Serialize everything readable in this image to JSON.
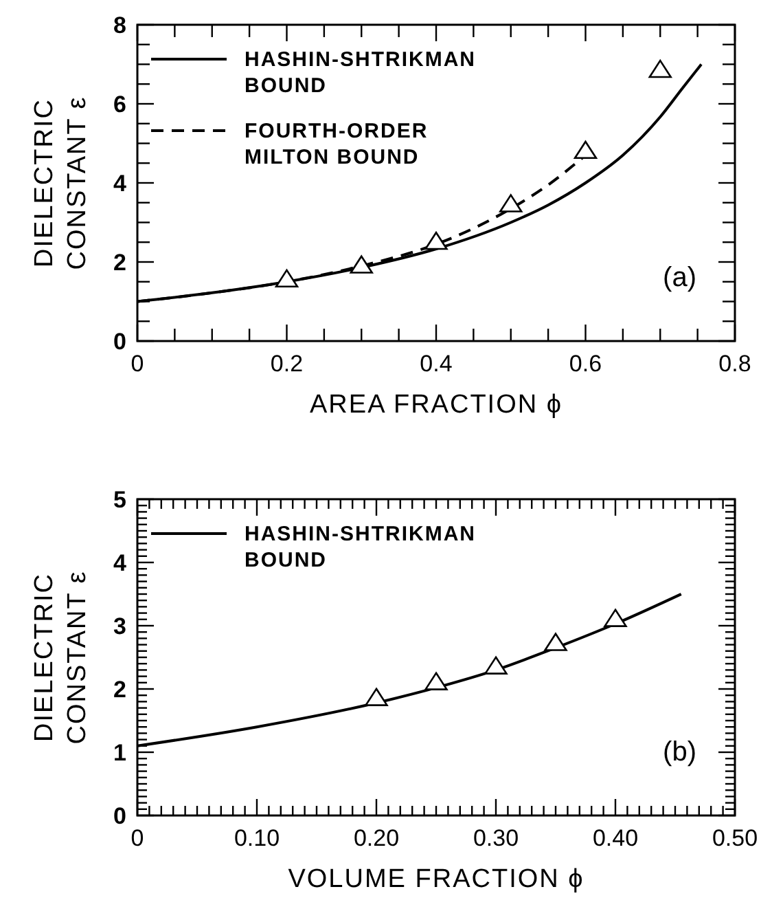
{
  "chart_data": [
    {
      "type": "line",
      "xlabel": "AREA FRACTION ϕ",
      "ylabel": "DIELECTRIC CONSTANT ε",
      "xlim": [
        0,
        0.8
      ],
      "ylim": [
        0,
        8
      ],
      "xticks": [
        0,
        {
          "value": 0.05,
          "label": null
        },
        {
          "value": 0.1,
          "label": null
        },
        {
          "value": 0.15,
          "label": null
        },
        0.2,
        {
          "value": 0.25,
          "label": null
        },
        {
          "value": 0.3,
          "label": null
        },
        {
          "value": 0.35,
          "label": null
        },
        0.4,
        {
          "value": 0.45,
          "label": null
        },
        {
          "value": 0.5,
          "label": null
        },
        {
          "value": 0.55,
          "label": null
        },
        0.6,
        {
          "value": 0.65,
          "label": null
        },
        {
          "value": 0.7,
          "label": null
        },
        {
          "value": 0.75,
          "label": null
        },
        0.8
      ],
      "yticks": [
        0,
        {
          "value": 0.5,
          "label": null
        },
        {
          "value": 1,
          "label": null
        },
        {
          "value": 1.5,
          "label": null
        },
        2,
        {
          "value": 2.5,
          "label": null
        },
        {
          "value": 3,
          "label": null
        },
        {
          "value": 3.5,
          "label": null
        },
        4,
        {
          "value": 4.5,
          "label": null
        },
        {
          "value": 5,
          "label": null
        },
        {
          "value": 5.5,
          "label": null
        },
        6,
        {
          "value": 6.5,
          "label": null
        },
        {
          "value": 7,
          "label": null
        },
        {
          "value": 7.5,
          "label": null
        },
        8
      ],
      "legend": "top left",
      "annotations": [
        "(a)"
      ],
      "series": [
        {
          "name": "HASHIN-SHTRIKMAN BOUND",
          "line_style": "solid",
          "color": "#000000",
          "x": [
            0,
            0.1,
            0.2,
            0.3,
            0.4,
            0.5,
            0.55,
            0.6,
            0.65,
            0.7,
            0.73,
            0.755
          ],
          "values": [
            1,
            1.22,
            1.5,
            1.86,
            2.33,
            3.0,
            3.44,
            4.0,
            4.7,
            5.67,
            6.4,
            7.0
          ]
        },
        {
          "name": "FOURTH-ORDER MILTON BOUND",
          "line_style": "dashed",
          "color": "#000000",
          "x": [
            0,
            0.1,
            0.2,
            0.3,
            0.4,
            0.45,
            0.5,
            0.55,
            0.6
          ],
          "values": [
            1,
            1.22,
            1.5,
            1.9,
            2.45,
            2.85,
            3.35,
            3.95,
            4.7
          ]
        },
        {
          "type": "scatter",
          "marker": "triangle",
          "color": "#000000",
          "x": [
            0.2,
            0.3,
            0.4,
            0.5,
            0.6,
            0.7
          ],
          "values": [
            1.55,
            1.9,
            2.5,
            3.45,
            4.8,
            6.85
          ]
        }
      ]
    },
    {
      "type": "line",
      "xlabel": "VOLUME FRACTION ϕ",
      "ylabel": "DIELECTRIC CONSTANT ε",
      "xlim": [
        0,
        0.5
      ],
      "ylim": [
        0,
        5
      ],
      "xticks": [
        0,
        {
          "value": 0.01,
          "label": null
        },
        {
          "value": 0.02,
          "label": null
        },
        {
          "value": 0.03,
          "label": null
        },
        {
          "value": 0.04,
          "label": null
        },
        {
          "value": 0.05,
          "label": null
        },
        {
          "value": 0.06,
          "label": null
        },
        {
          "value": 0.07,
          "label": null
        },
        {
          "value": 0.08,
          "label": null
        },
        {
          "value": 0.09,
          "label": null
        },
        {
          "value": 0.1,
          "label": "0.10"
        },
        {
          "value": 0.11,
          "label": null
        },
        {
          "value": 0.12,
          "label": null
        },
        {
          "value": 0.13,
          "label": null
        },
        {
          "value": 0.14,
          "label": null
        },
        {
          "value": 0.15,
          "label": null
        },
        {
          "value": 0.16,
          "label": null
        },
        {
          "value": 0.17,
          "label": null
        },
        {
          "value": 0.18,
          "label": null
        },
        {
          "value": 0.19,
          "label": null
        },
        {
          "value": 0.2,
          "label": "0.20"
        },
        {
          "value": 0.21,
          "label": null
        },
        {
          "value": 0.22,
          "label": null
        },
        {
          "value": 0.23,
          "label": null
        },
        {
          "value": 0.24,
          "label": null
        },
        {
          "value": 0.25,
          "label": null
        },
        {
          "value": 0.26,
          "label": null
        },
        {
          "value": 0.27,
          "label": null
        },
        {
          "value": 0.28,
          "label": null
        },
        {
          "value": 0.29,
          "label": null
        },
        {
          "value": 0.3,
          "label": "0.30"
        },
        {
          "value": 0.31,
          "label": null
        },
        {
          "value": 0.32,
          "label": null
        },
        {
          "value": 0.33,
          "label": null
        },
        {
          "value": 0.34,
          "label": null
        },
        {
          "value": 0.35,
          "label": null
        },
        {
          "value": 0.36,
          "label": null
        },
        {
          "value": 0.37,
          "label": null
        },
        {
          "value": 0.38,
          "label": null
        },
        {
          "value": 0.39,
          "label": null
        },
        {
          "value": 0.4,
          "label": "0.40"
        },
        {
          "value": 0.41,
          "label": null
        },
        {
          "value": 0.42,
          "label": null
        },
        {
          "value": 0.43,
          "label": null
        },
        {
          "value": 0.44,
          "label": null
        },
        {
          "value": 0.45,
          "label": null
        },
        {
          "value": 0.46,
          "label": null
        },
        {
          "value": 0.47,
          "label": null
        },
        {
          "value": 0.48,
          "label": null
        },
        {
          "value": 0.49,
          "label": null
        },
        {
          "value": 0.5,
          "label": "0.50"
        }
      ],
      "yticks": [
        0,
        {
          "value": 0.1,
          "label": null
        },
        {
          "value": 0.2,
          "label": null
        },
        {
          "value": 0.3,
          "label": null
        },
        {
          "value": 0.4,
          "label": null
        },
        {
          "value": 0.5,
          "label": null
        },
        {
          "value": 0.6,
          "label": null
        },
        {
          "value": 0.7,
          "label": null
        },
        {
          "value": 0.8,
          "label": null
        },
        {
          "value": 0.9,
          "label": null
        },
        1,
        {
          "value": 1.1,
          "label": null
        },
        {
          "value": 1.2,
          "label": null
        },
        {
          "value": 1.3,
          "label": null
        },
        {
          "value": 1.4,
          "label": null
        },
        {
          "value": 1.5,
          "label": null
        },
        {
          "value": 1.6,
          "label": null
        },
        {
          "value": 1.7,
          "label": null
        },
        {
          "value": 1.8,
          "label": null
        },
        {
          "value": 1.9,
          "label": null
        },
        2,
        {
          "value": 2.1,
          "label": null
        },
        {
          "value": 2.2,
          "label": null
        },
        {
          "value": 2.3,
          "label": null
        },
        {
          "value": 2.4,
          "label": null
        },
        {
          "value": 2.5,
          "label": null
        },
        {
          "value": 2.6,
          "label": null
        },
        {
          "value": 2.7,
          "label": null
        },
        {
          "value": 2.8,
          "label": null
        },
        {
          "value": 2.9,
          "label": null
        },
        3,
        {
          "value": 3.1,
          "label": null
        },
        {
          "value": 3.2,
          "label": null
        },
        {
          "value": 3.3,
          "label": null
        },
        {
          "value": 3.4,
          "label": null
        },
        {
          "value": 3.5,
          "label": null
        },
        {
          "value": 3.6,
          "label": null
        },
        {
          "value": 3.7,
          "label": null
        },
        {
          "value": 3.8,
          "label": null
        },
        {
          "value": 3.9,
          "label": null
        },
        4,
        {
          "value": 4.1,
          "label": null
        },
        {
          "value": 4.2,
          "label": null
        },
        {
          "value": 4.3,
          "label": null
        },
        {
          "value": 4.4,
          "label": null
        },
        {
          "value": 4.5,
          "label": null
        },
        {
          "value": 4.6,
          "label": null
        },
        {
          "value": 4.7,
          "label": null
        },
        {
          "value": 4.8,
          "label": null
        },
        {
          "value": 4.9,
          "label": null
        },
        5
      ],
      "legend": "top left",
      "annotations": [
        "(b)"
      ],
      "series": [
        {
          "name": "HASHIN-SHTRIKMAN BOUND",
          "line_style": "solid",
          "color": "#000000",
          "x": [
            0,
            0.1,
            0.2,
            0.25,
            0.3,
            0.35,
            0.4,
            0.455
          ],
          "values": [
            1.1,
            1.4,
            1.78,
            2.02,
            2.3,
            2.65,
            3.03,
            3.5
          ]
        },
        {
          "type": "scatter",
          "marker": "triangle",
          "color": "#000000",
          "x": [
            0.2,
            0.25,
            0.3,
            0.35,
            0.4
          ],
          "values": [
            1.85,
            2.1,
            2.35,
            2.72,
            3.1
          ]
        }
      ]
    }
  ]
}
